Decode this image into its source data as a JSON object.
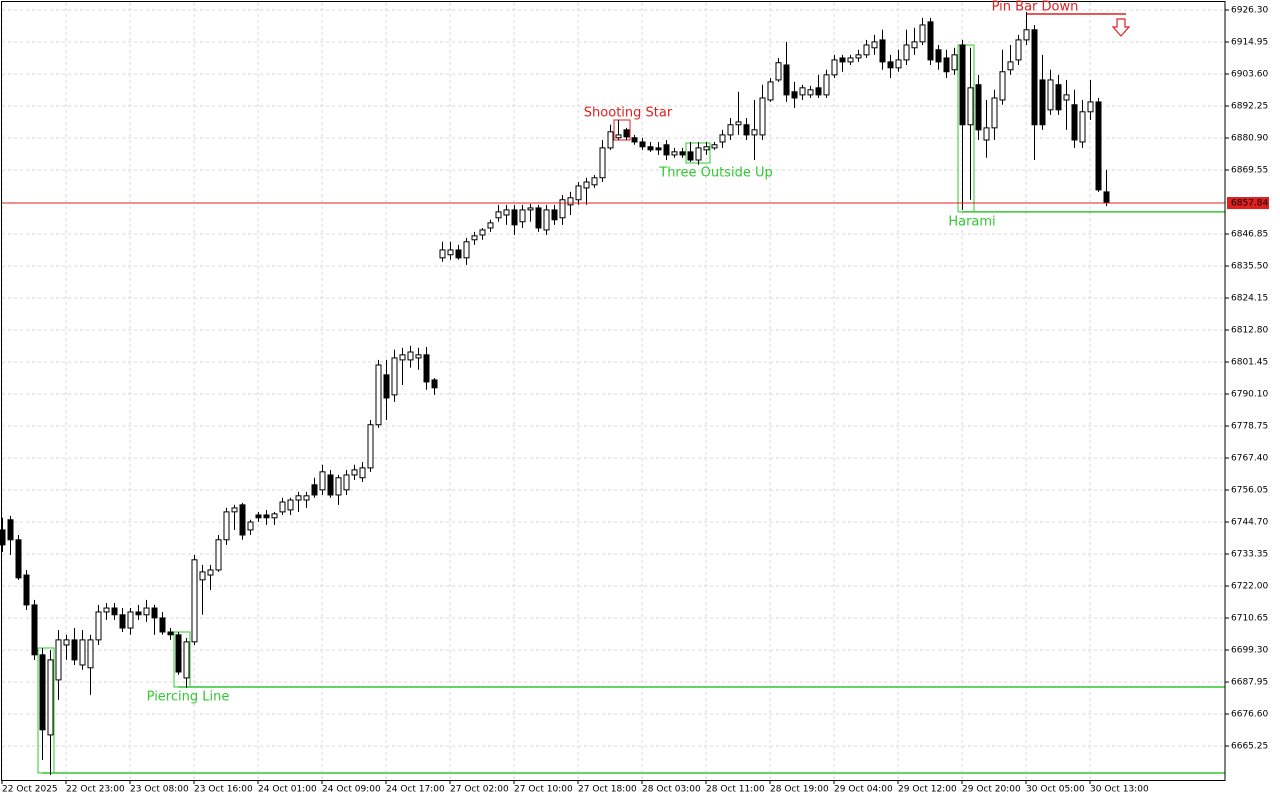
{
  "chart_data": {
    "type": "candlestick",
    "categories": [
      "22 Oct 2025",
      null,
      null,
      null,
      null,
      null,
      null,
      null,
      "22 Oct 23:00",
      null,
      null,
      null,
      null,
      null,
      null,
      null,
      "23 Oct 08:00",
      null,
      null,
      null,
      null,
      null,
      null,
      null,
      "23 Oct 16:00",
      null,
      null,
      null,
      null,
      null,
      null,
      null,
      "24 Oct 01:00",
      null,
      null,
      null,
      null,
      null,
      null,
      null,
      "24 Oct 09:00",
      null,
      null,
      null,
      null,
      null,
      null,
      null,
      "24 Oct 17:00",
      null,
      null,
      null,
      null,
      null,
      null,
      null,
      "27 Oct 02:00",
      null,
      null,
      null,
      null,
      null,
      null,
      null,
      "27 Oct 10:00",
      null,
      null,
      null,
      null,
      null,
      null,
      null,
      "27 Oct 18:00",
      null,
      null,
      null,
      null,
      null,
      null,
      null,
      "28 Oct 03:00",
      null,
      null,
      null,
      null,
      null,
      null,
      null,
      "28 Oct 11:00",
      null,
      null,
      null,
      null,
      null,
      null,
      null,
      "28 Oct 19:00",
      null,
      null,
      null,
      null,
      null,
      null,
      null,
      "29 Oct 04:00",
      null,
      null,
      null,
      null,
      null,
      null,
      null,
      "29 Oct 12:00",
      null,
      null,
      null,
      null,
      null,
      null,
      null,
      "29 Oct 20:00",
      null,
      null,
      null,
      null,
      null,
      null,
      null,
      "30 Oct 05:00",
      null,
      null,
      null,
      null,
      null,
      null,
      null,
      "30 Oct 13:00",
      null,
      null
    ],
    "open": [
      6741.9,
      6745.5,
      6738.4,
      6725.9,
      6715.3,
      6697.6,
      6669.2,
      6688.7,
      6701.1,
      6702.9,
      6694.0,
      6693.0,
      6702.9,
      6712.8,
      6714.2,
      6711.8,
      6707.1,
      6712.8,
      6711.8,
      6714.2,
      6710.7,
      6705.7,
      6704.7,
      6689.4,
      6702.2,
      6724.2,
      6725.9,
      6727.7,
      6738.4,
      6748.3,
      6750.8,
      6741.9,
      6747.2,
      6747.2,
      6746.2,
      6748.3,
      6749.0,
      6752.5,
      6752.5,
      6757.9,
      6756.1,
      6761.4,
      6754.3,
      6756.1,
      6761.4,
      6760.4,
      6763.9,
      6779.2,
      6796.9,
      6789.8,
      6802.2,
      6802.2,
      6802.9,
      6804.0,
      6795.1,
      6838.4,
      6839.5,
      6841.2,
      6838.4,
      6844.8,
      6846.5,
      6849.0,
      6852.6,
      6853.6,
      6855.4,
      6851.2,
      6855.4,
      6856.1,
      6848.3,
      6855.4,
      6852.6,
      6857.2,
      6859.0,
      6863.2,
      6864.3,
      6866.8,
      6877.4,
      6881.0,
      6883.8,
      6881.0,
      6879.5,
      6877.8,
      6877.4,
      6878.5,
      6874.9,
      6876.0,
      6876.0,
      6873.1,
      6876.7,
      6877.4,
      6879.5,
      6882.0,
      6885.6,
      6885.6,
      6882.0,
      6882.0,
      6894.4,
      6901.5,
      6906.8,
      6897.3,
      6896.2,
      6896.2,
      6898.7,
      6896.2,
      6903.3,
      6909.3,
      6907.9,
      6909.3,
      6910.4,
      6912.9,
      6915.7,
      6907.9,
      6905.8,
      6908.6,
      6912.9,
      6915.0,
      6922.1,
      6912.2,
      6909.3,
      6905.1,
      6913.9,
      6885.6,
      6899.8,
      6880.2,
      6884.5,
      6894.4,
      6905.1,
      6908.6,
      6915.7,
      6919.3,
      6901.5,
      6890.9,
      6899.8,
      6894.4,
      6892.7,
      6879.5,
      6890.2,
      6893.7,
      6861.8
    ],
    "high": [
      6746.2,
      6746.9,
      6740.1,
      6727.7,
      6717.1,
      6700.1,
      6699.3,
      6706.4,
      6704.7,
      6707.1,
      6706.4,
      6704.7,
      6715.3,
      6716.0,
      6716.0,
      6714.2,
      6714.2,
      6715.3,
      6717.1,
      6715.3,
      6712.8,
      6707.1,
      6705.7,
      6703.6,
      6733.0,
      6729.5,
      6729.5,
      6740.1,
      6749.7,
      6750.8,
      6751.5,
      6745.5,
      6748.3,
      6749.0,
      6748.3,
      6753.3,
      6753.3,
      6755.4,
      6755.4,
      6760.4,
      6765.0,
      6763.2,
      6761.4,
      6763.2,
      6765.0,
      6766.0,
      6780.9,
      6802.2,
      6802.2,
      6805.8,
      6806.5,
      6807.2,
      6806.5,
      6806.8,
      6795.8,
      6844.1,
      6844.1,
      6843.0,
      6845.5,
      6847.6,
      6849.0,
      6851.9,
      6857.2,
      6857.2,
      6857.2,
      6857.2,
      6857.5,
      6857.2,
      6857.2,
      6857.2,
      6860.7,
      6861.8,
      6865.3,
      6866.8,
      6867.8,
      6880.2,
      6885.6,
      6887.3,
      6884.5,
      6882.0,
      6881.0,
      6879.5,
      6879.5,
      6880.2,
      6877.4,
      6877.4,
      6879.5,
      6879.5,
      6879.5,
      6879.5,
      6883.8,
      6888.0,
      6897.3,
      6888.0,
      6894.4,
      6899.8,
      6902.2,
      6909.3,
      6915.0,
      6900.8,
      6899.8,
      6899.4,
      6903.3,
      6905.1,
      6910.4,
      6910.4,
      6910.4,
      6912.2,
      6915.7,
      6917.5,
      6919.3,
      6910.4,
      6912.2,
      6919.3,
      6920.0,
      6923.5,
      6923.5,
      6913.9,
      6912.2,
      6912.9,
      6915.7,
      6912.9,
      6903.3,
      6894.4,
      6898.0,
      6912.2,
      6913.9,
      6917.5,
      6925.6,
      6921.0,
      6910.4,
      6905.1,
      6903.3,
      6901.5,
      6898.0,
      6894.4,
      6901.5,
      6895.1,
      6869.6
    ],
    "low": [
      6734.1,
      6733.0,
      6724.2,
      6713.5,
      6695.8,
      6660.3,
      6655.0,
      6681.6,
      6695.8,
      6694.0,
      6692.3,
      6683.4,
      6701.1,
      6710.0,
      6710.0,
      6705.7,
      6704.7,
      6710.0,
      6709.3,
      6704.7,
      6704.7,
      6702.9,
      6690.5,
      6685.9,
      6701.1,
      6711.8,
      6720.6,
      6727.0,
      6736.6,
      6741.9,
      6738.4,
      6740.1,
      6744.7,
      6743.7,
      6743.7,
      6747.2,
      6747.2,
      6748.3,
      6749.7,
      6753.3,
      6754.3,
      6753.3,
      6750.8,
      6754.3,
      6759.6,
      6758.9,
      6762.5,
      6778.1,
      6780.9,
      6787.3,
      6793.3,
      6799.4,
      6798.7,
      6791.6,
      6789.8,
      6837.0,
      6837.7,
      6837.7,
      6835.9,
      6843.0,
      6844.8,
      6847.6,
      6851.2,
      6850.1,
      6846.5,
      6849.0,
      6851.2,
      6847.6,
      6846.5,
      6850.1,
      6850.1,
      6853.6,
      6857.2,
      6857.2,
      6863.2,
      6865.3,
      6876.7,
      6880.2,
      6880.2,
      6878.5,
      6876.7,
      6876.0,
      6874.9,
      6873.1,
      6873.9,
      6873.9,
      6872.4,
      6871.4,
      6874.9,
      6876.7,
      6877.4,
      6880.2,
      6882.0,
      6880.2,
      6873.1,
      6880.2,
      6893.7,
      6900.8,
      6893.7,
      6891.6,
      6894.4,
      6895.1,
      6895.1,
      6895.1,
      6902.2,
      6904.4,
      6906.8,
      6907.9,
      6909.3,
      6910.4,
      6905.1,
      6902.2,
      6904.4,
      6906.8,
      6910.4,
      6913.9,
      6906.8,
      6905.1,
      6902.2,
      6903.3,
      6855.4,
      6859.0,
      6880.2,
      6873.9,
      6880.2,
      6892.7,
      6903.3,
      6906.8,
      6913.9,
      6873.1,
      6883.8,
      6889.1,
      6889.1,
      6883.8,
      6877.4,
      6877.4,
      6887.3,
      6861.8,
      6856.8
    ],
    "close": [
      6736.6,
      6738.4,
      6724.9,
      6715.3,
      6697.6,
      6671.0,
      6695.8,
      6702.9,
      6702.9,
      6695.8,
      6702.9,
      6702.9,
      6712.8,
      6714.2,
      6711.8,
      6707.1,
      6712.8,
      6711.8,
      6714.2,
      6710.7,
      6705.7,
      6704.7,
      6691.5,
      6702.2,
      6731.3,
      6727.0,
      6727.7,
      6738.4,
      6748.3,
      6749.7,
      6740.1,
      6744.7,
      6746.2,
      6746.2,
      6747.6,
      6751.8,
      6752.5,
      6754.0,
      6754.0,
      6754.3,
      6762.5,
      6754.3,
      6760.4,
      6761.4,
      6763.2,
      6763.9,
      6779.2,
      6800.4,
      6788.7,
      6802.9,
      6804.0,
      6805.0,
      6804.0,
      6794.4,
      6792.3,
      6841.2,
      6841.2,
      6838.4,
      6844.1,
      6846.2,
      6848.3,
      6850.8,
      6854.7,
      6855.4,
      6850.1,
      6855.4,
      6856.1,
      6849.0,
      6855.4,
      6851.9,
      6859.0,
      6859.7,
      6863.9,
      6865.3,
      6866.8,
      6877.4,
      6883.1,
      6882.0,
      6881.3,
      6879.5,
      6877.8,
      6876.7,
      6876.7,
      6874.9,
      6876.0,
      6874.9,
      6873.1,
      6877.4,
      6877.8,
      6878.5,
      6882.0,
      6885.6,
      6886.6,
      6882.0,
      6883.8,
      6895.1,
      6900.8,
      6907.6,
      6896.2,
      6895.1,
      6898.7,
      6898.0,
      6896.2,
      6903.3,
      6908.6,
      6907.9,
      6909.3,
      6910.4,
      6913.9,
      6915.0,
      6907.9,
      6905.8,
      6908.6,
      6913.9,
      6915.0,
      6921.0,
      6908.6,
      6907.9,
      6904.4,
      6910.4,
      6885.6,
      6898.7,
      6883.8,
      6884.5,
      6895.1,
      6904.4,
      6907.9,
      6915.7,
      6919.3,
      6885.6,
      6885.6,
      6901.5,
      6890.9,
      6896.2,
      6880.2,
      6890.2,
      6893.7,
      6862.5,
      6857.84
    ],
    "up_color": "#ffffff",
    "down_color": "#000000",
    "price_line_color": "#e02020",
    "ylim": [
      6653.2,
      6929.85
    ],
    "yticks": [
      {
        "value": 6926.3,
        "label": "6926.30"
      },
      6914.95,
      {
        "value": 6903.6,
        "label": "6903.60"
      },
      6892.25,
      {
        "value": 6880.9,
        "label": "6880.90"
      },
      6869.55,
      6846.85,
      {
        "value": 6835.5,
        "label": "6835.50"
      },
      6824.15,
      {
        "value": 6812.8,
        "label": "6812.80"
      },
      6801.45,
      {
        "value": 6790.1,
        "label": "6790.10"
      },
      6778.75,
      {
        "value": 6767.4,
        "label": "6767.40"
      },
      6756.05,
      {
        "value": 6744.7,
        "label": "6744.70"
      },
      6733.35,
      {
        "value": 6722.0,
        "label": "6722.00"
      },
      6710.65,
      {
        "value": 6699.3,
        "label": "6699.30"
      },
      6687.95,
      {
        "value": 6676.6,
        "label": "6676.60"
      },
      6665.25
    ],
    "grid": true,
    "annotations": [
      {
        "text": "Piercing Line",
        "level": 6686.2,
        "color": "#32c832"
      },
      {
        "level": 6655.7,
        "color": "#32c832"
      },
      {
        "text": "Shooting Star",
        "color": "#e02020"
      },
      {
        "text": "Three Outside Up",
        "color": "#32c832"
      },
      {
        "text": "Harami",
        "level": 6854.7,
        "color": "#32c832"
      },
      {
        "text": "Pin Bar Down",
        "level": 6924.9,
        "color": "#e02020"
      }
    ]
  }
}
